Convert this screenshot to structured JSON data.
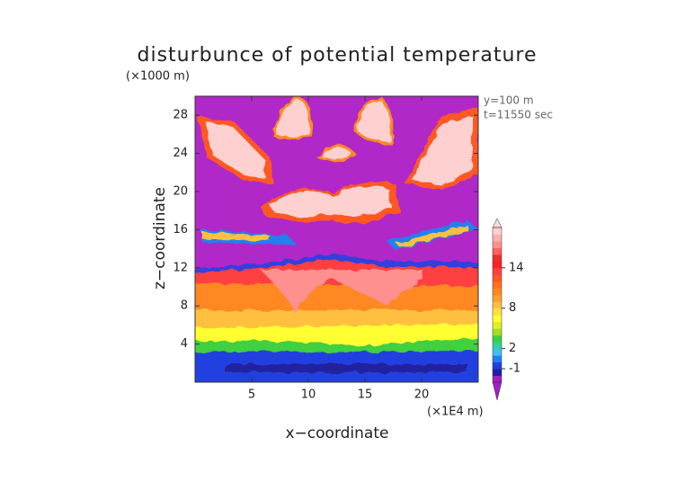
{
  "chart_data": {
    "type": "heatmap",
    "title": "disturbunce of potential temperature",
    "y_unit": "(×1000 m)",
    "x_unit": "(×1E4 m)",
    "xlabel": "x−coordinate",
    "ylabel": "z−coordinate",
    "annotations": [
      "y=100 m",
      "t=11550 sec"
    ],
    "xlim": [
      0,
      25
    ],
    "xticks": [
      5,
      10,
      15,
      20
    ],
    "ylim": [
      0,
      30
    ],
    "yticks": [
      4,
      8,
      12,
      16,
      20,
      24,
      28
    ],
    "colorbar": {
      "lim": [
        -3,
        20
      ],
      "ticks": [
        -1,
        2,
        8,
        14
      ],
      "under_color": "#a020c0",
      "over_color": "#ffd8d8",
      "colors": [
        "#a020c0",
        "#2020a0",
        "#2040e0",
        "#2080f0",
        "#40c0f0",
        "#30d0a0",
        "#40d040",
        "#a0e020",
        "#e0f020",
        "#ffff30",
        "#ffe040",
        "#ffc040",
        "#ffa030",
        "#ff8820",
        "#ff7020",
        "#ff5820",
        "#ff4040",
        "#ff2020",
        "#e83030",
        "#ff6060",
        "#ff9090",
        "#ffb0b0",
        "#ffd0d0"
      ]
    }
  }
}
